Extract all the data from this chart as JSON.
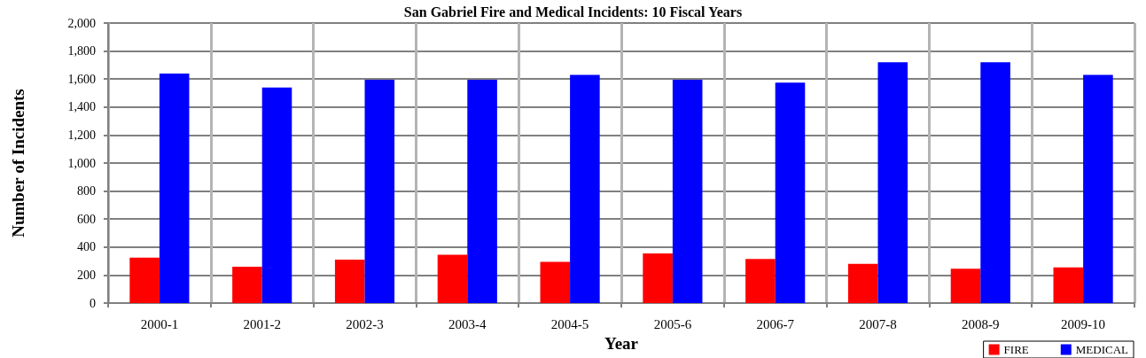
{
  "chart_data": {
    "type": "bar",
    "title": "San Gabriel Fire and Medical Incidents: 10 Fiscal Years",
    "xlabel": "Year",
    "ylabel": "Number of Incidents",
    "categories": [
      "2000-1",
      "2001-2",
      "2002-3",
      "2003-4",
      "2004-5",
      "2005-6",
      "2006-7",
      "2007-8",
      "2008-9",
      "2009-10"
    ],
    "series": [
      {
        "name": "FIRE",
        "color": "#ff0000",
        "values": [
          325,
          260,
          310,
          345,
          295,
          355,
          315,
          280,
          245,
          255
        ]
      },
      {
        "name": "MEDICAL",
        "color": "#0000ff",
        "values": [
          1640,
          1540,
          1595,
          1595,
          1630,
          1595,
          1575,
          1720,
          1720,
          1630
        ]
      }
    ],
    "ylim": [
      0,
      2000
    ],
    "yticks": [
      0,
      200,
      400,
      600,
      800,
      {
        "value": 1000,
        "label": "1,000"
      },
      {
        "value": 1200,
        "label": "1,200"
      },
      {
        "value": 1400,
        "label": "1,400"
      },
      {
        "value": 1600,
        "label": "1,600"
      },
      {
        "value": 1800,
        "label": "1,800"
      },
      {
        "value": 2000,
        "label": "2,000"
      }
    ],
    "grid": true,
    "legend": "bottom right"
  }
}
